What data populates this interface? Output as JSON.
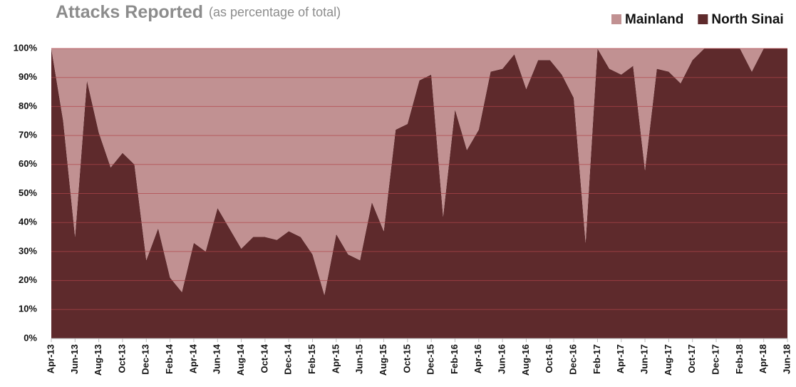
{
  "chart_data": {
    "type": "stacked_area",
    "title": "Attacks Reported",
    "subtitle": "(as percentage of total)",
    "categories": [
      "Apr-13",
      null,
      "Jun-13",
      null,
      "Aug-13",
      null,
      "Oct-13",
      null,
      "Dec-13",
      null,
      "Feb-14",
      null,
      "Apr-14",
      null,
      "Jun-14",
      null,
      "Aug-14",
      null,
      "Oct-14",
      null,
      "Dec-14",
      null,
      "Feb-15",
      null,
      "Apr-15",
      null,
      "Jun-15",
      null,
      "Aug-15",
      null,
      "Oct-15",
      null,
      "Dec-15",
      null,
      "Feb-16",
      null,
      "Apr-16",
      null,
      "Jun-16",
      null,
      "Aug-16",
      null,
      "Oct-16",
      null,
      "Dec-16",
      null,
      "Feb-17",
      null,
      "Apr-17",
      null,
      "Jun-17",
      null,
      "Aug-17",
      null,
      "Oct-17",
      null,
      "Dec-17",
      null,
      "Feb-18",
      null,
      "Apr-18",
      null,
      "Jun-18"
    ],
    "series": [
      {
        "name": "North Sinai",
        "color": "#5e2a2c",
        "values": [
          100,
          75,
          35,
          89,
          71,
          59,
          64,
          60,
          27,
          38,
          21,
          16,
          33,
          30,
          45,
          38,
          31,
          35,
          35,
          34,
          37,
          35,
          29,
          15,
          36,
          29,
          27,
          47,
          37,
          72,
          74,
          89,
          91,
          42,
          79,
          65,
          72,
          92,
          93,
          98,
          86,
          96,
          96,
          91,
          83,
          33,
          100,
          93,
          91,
          94,
          58,
          93,
          92,
          88,
          96,
          100,
          100,
          100,
          100,
          92,
          100,
          100,
          100
        ]
      },
      {
        "name": "Mainland",
        "color": "#c19192",
        "values": [
          0,
          25,
          65,
          11,
          29,
          41,
          36,
          40,
          73,
          62,
          79,
          84,
          67,
          70,
          55,
          62,
          69,
          65,
          65,
          66,
          63,
          65,
          71,
          85,
          64,
          71,
          73,
          53,
          63,
          28,
          26,
          11,
          9,
          58,
          21,
          35,
          28,
          8,
          7,
          2,
          14,
          4,
          4,
          9,
          17,
          67,
          0,
          7,
          9,
          6,
          42,
          7,
          8,
          12,
          4,
          0,
          0,
          0,
          0,
          8,
          0,
          0,
          0
        ]
      }
    ],
    "ylim": [
      0,
      100
    ],
    "yticks": [
      {
        "value": 0,
        "label": "0%"
      },
      {
        "value": 10,
        "label": "10%"
      },
      {
        "value": 20,
        "label": "20%"
      },
      {
        "value": 30,
        "label": "30%"
      },
      {
        "value": 40,
        "label": "40%"
      },
      {
        "value": 50,
        "label": "50%"
      },
      {
        "value": 60,
        "label": "60%"
      },
      {
        "value": 70,
        "label": "70%"
      },
      {
        "value": 80,
        "label": "80%"
      },
      {
        "value": 90,
        "label": "90%"
      },
      {
        "value": 100,
        "label": "100%"
      }
    ],
    "grid": true
  }
}
